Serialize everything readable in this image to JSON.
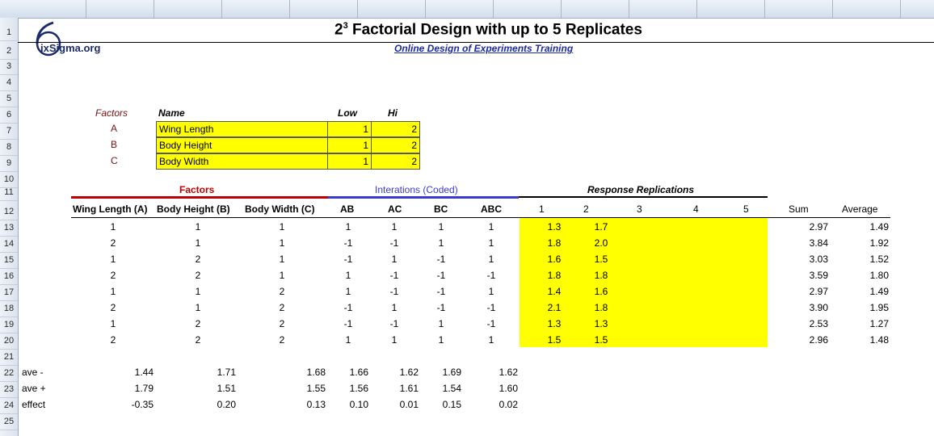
{
  "title": {
    "base": "2",
    "exp": "3",
    "rest": " Factorial Design with up to 5 Replicates"
  },
  "subtitle": "Online Design of Experiments Training",
  "logo": {
    "text": "ixSigma.org",
    "glyph": "6"
  },
  "row_numbers": [
    "1",
    "2",
    "3",
    "4",
    "5",
    "6",
    "7",
    "8",
    "9",
    "10",
    "11",
    "12",
    "13",
    "14",
    "15",
    "16",
    "17",
    "18",
    "19",
    "20",
    "21",
    "22",
    "23",
    "24",
    "25"
  ],
  "factors_table": {
    "headers": {
      "factors": "Factors",
      "name": "Name",
      "low": "Low",
      "hi": "Hi"
    },
    "rows": [
      {
        "id": "A",
        "name": "Wing Length",
        "low": "1",
        "hi": "2"
      },
      {
        "id": "B",
        "name": "Body Height",
        "low": "1",
        "hi": "2"
      },
      {
        "id": "C",
        "name": "Body Width",
        "low": "1",
        "hi": "2"
      }
    ]
  },
  "design": {
    "group_labels": {
      "factors": "Factors",
      "interactions": "Interations (Coded)",
      "responses": "Response Replications"
    },
    "columns": [
      "Wing Length (A)",
      "Body Height (B)",
      "Body Width (C)",
      "AB",
      "AC",
      "BC",
      "ABC",
      "1",
      "2",
      "3",
      "4",
      "5",
      "Sum",
      "Average"
    ],
    "rows": [
      [
        "1",
        "1",
        "1",
        "1",
        "1",
        "1",
        "1",
        "1.3",
        "1.7",
        "",
        "",
        "",
        "2.97",
        "1.49"
      ],
      [
        "2",
        "1",
        "1",
        "-1",
        "-1",
        "1",
        "1",
        "1.8",
        "2.0",
        "",
        "",
        "",
        "3.84",
        "1.92"
      ],
      [
        "1",
        "2",
        "1",
        "-1",
        "1",
        "-1",
        "1",
        "1.6",
        "1.5",
        "",
        "",
        "",
        "3.03",
        "1.52"
      ],
      [
        "2",
        "2",
        "1",
        "1",
        "-1",
        "-1",
        "-1",
        "1.8",
        "1.8",
        "",
        "",
        "",
        "3.59",
        "1.80"
      ],
      [
        "1",
        "1",
        "2",
        "1",
        "-1",
        "-1",
        "1",
        "1.4",
        "1.6",
        "",
        "",
        "",
        "2.97",
        "1.49"
      ],
      [
        "2",
        "1",
        "2",
        "-1",
        "1",
        "-1",
        "-1",
        "2.1",
        "1.8",
        "",
        "",
        "",
        "3.90",
        "1.95"
      ],
      [
        "1",
        "2",
        "2",
        "-1",
        "-1",
        "1",
        "-1",
        "1.3",
        "1.3",
        "",
        "",
        "",
        "2.53",
        "1.27"
      ],
      [
        "2",
        "2",
        "2",
        "1",
        "1",
        "1",
        "1",
        "1.5",
        "1.5",
        "",
        "",
        "",
        "2.96",
        "1.48"
      ]
    ]
  },
  "summary": {
    "rows": [
      {
        "label": "ave -",
        "values": [
          "1.44",
          "1.71",
          "1.68",
          "1.66",
          "1.62",
          "1.69",
          "1.62"
        ]
      },
      {
        "label": "ave +",
        "values": [
          "1.79",
          "1.51",
          "1.55",
          "1.56",
          "1.61",
          "1.54",
          "1.60"
        ]
      },
      {
        "label": "effect",
        "values": [
          "-0.35",
          "0.20",
          "0.13",
          "0.10",
          "0.01",
          "0.15",
          "0.02"
        ]
      }
    ]
  },
  "colors": {
    "factor_red": "#c00000",
    "interaction_blue": "#3a3ad0",
    "highlight": "#ffff00"
  }
}
